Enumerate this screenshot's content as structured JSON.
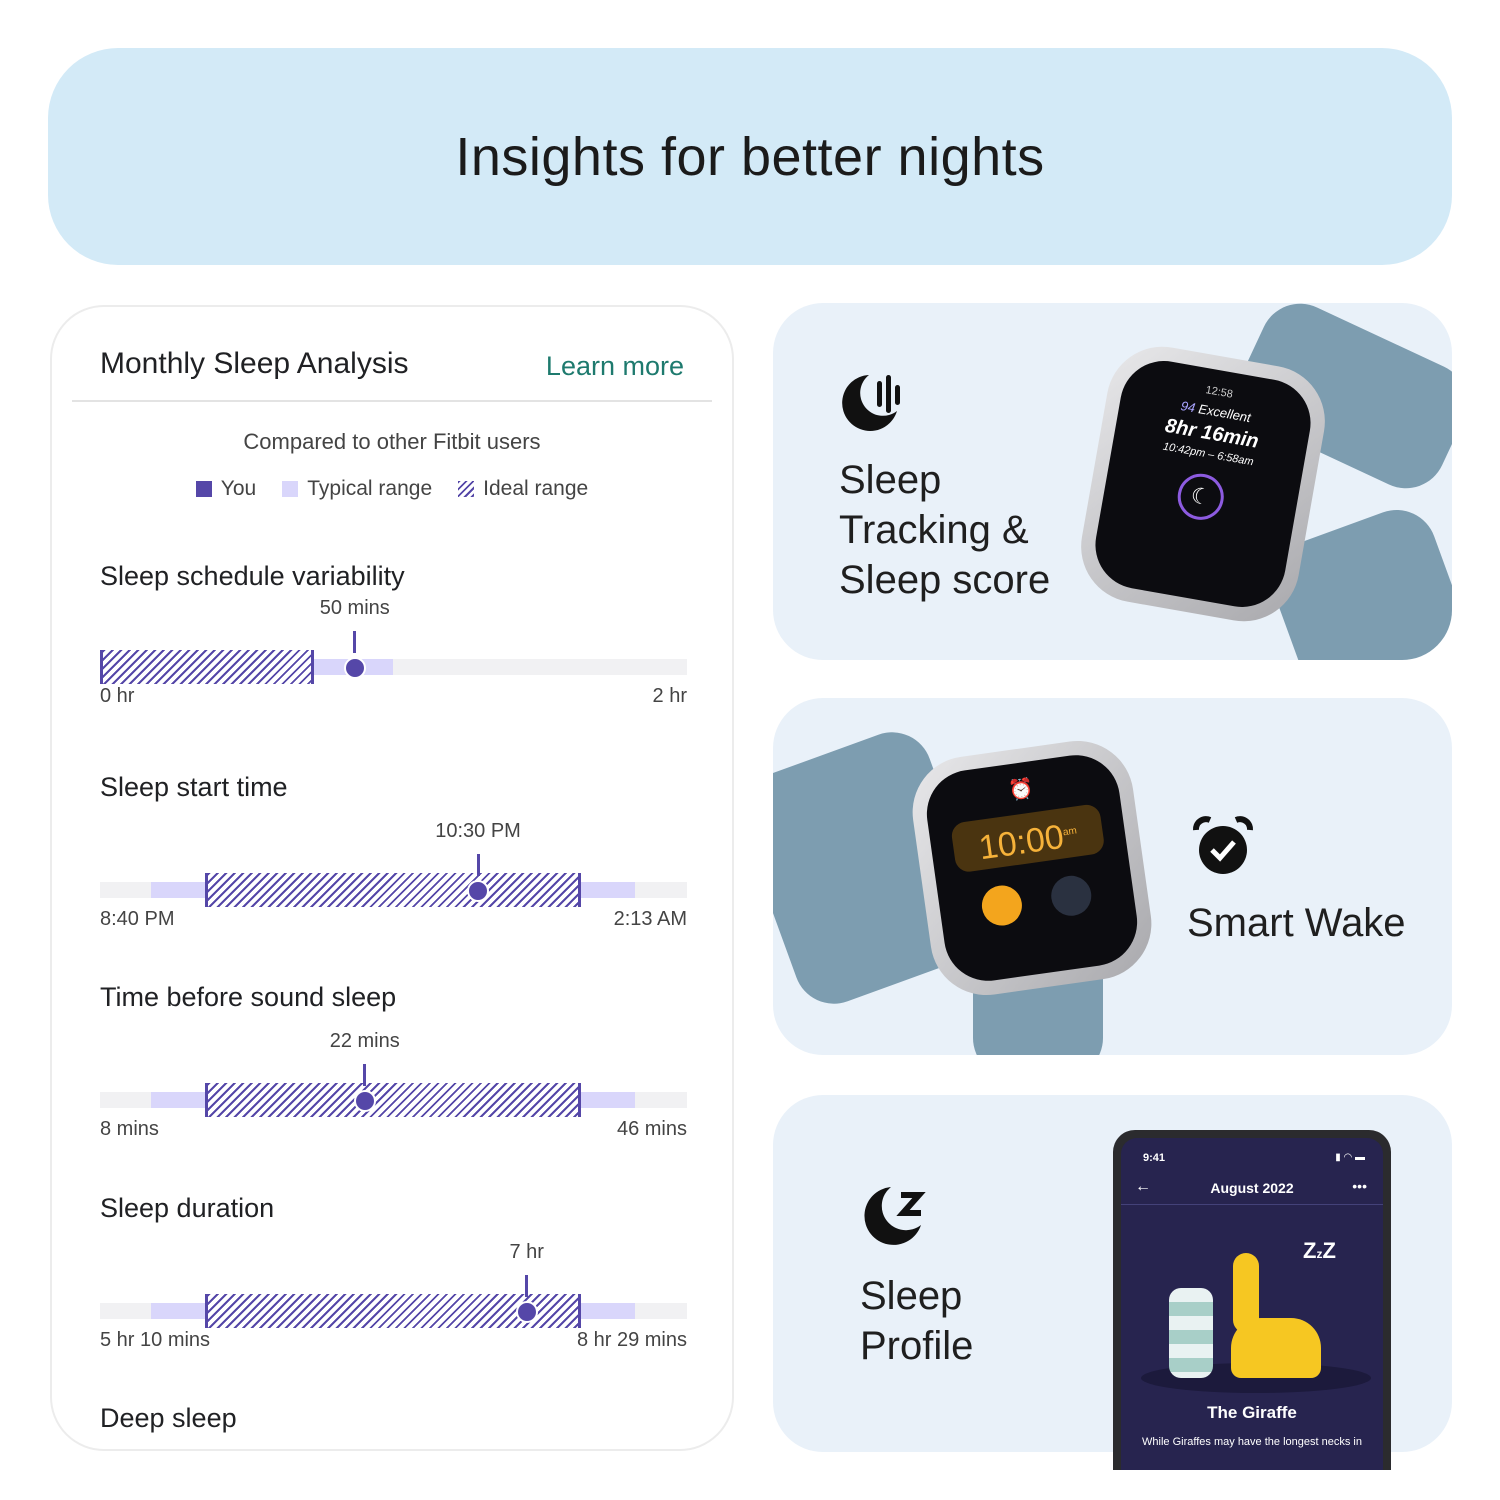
{
  "banner": {
    "title": "Insights for better nights"
  },
  "analysis": {
    "title": "Monthly Sleep Analysis",
    "learn_more": "Learn more",
    "subtitle": "Compared to other Fitbit users",
    "legend": [
      {
        "label": "You",
        "color": "#5547a8"
      },
      {
        "label": "Typical range",
        "color": "#d9d6fb"
      },
      {
        "label": "Ideal range",
        "pattern": "hatched"
      }
    ],
    "metrics": [
      {
        "title": "Sleep schedule variability",
        "value": "50 mins",
        "min": "0 hr",
        "max": "2 hr",
        "ideal": [
          0,
          0.365
        ],
        "typical": [
          0.365,
          0.5
        ],
        "you": 0.434
      },
      {
        "title": "Sleep start time",
        "value": "10:30 PM",
        "min": "8:40 PM",
        "max": "2:13 AM",
        "ideal": [
          0.179,
          0.819
        ],
        "typical": [
          0.087,
          0.911
        ],
        "you": 0.644
      },
      {
        "title": "Time before sound sleep",
        "value": "22 mins",
        "min": "8 mins",
        "max": "46 mins",
        "ideal": [
          0.179,
          0.819
        ],
        "typical": [
          0.087,
          0.911
        ],
        "you": 0.451
      },
      {
        "title": "Sleep duration",
        "value": "7 hr",
        "min": "5 hr 10 mins",
        "max": "8 hr 29 mins",
        "ideal": [
          0.179,
          0.819
        ],
        "typical": [
          0.087,
          0.911
        ],
        "you": 0.727
      },
      {
        "title": "Deep sleep"
      }
    ]
  },
  "features": [
    {
      "icon": "sleep-tracking-icon",
      "lines": [
        "Sleep",
        "Tracking &",
        "Sleep score"
      ],
      "watch": {
        "time": "12:58",
        "score": "94",
        "score_label": "Excellent",
        "duration": "8hr 16min",
        "range": "10:42pm – 6:58am"
      }
    },
    {
      "icon": "alarm-clock-icon",
      "lines": [
        "Smart Wake"
      ],
      "watch": {
        "time": "10:00",
        "ampm": "am"
      }
    },
    {
      "icon": "moon-z-icon",
      "lines": [
        "Sleep",
        "Profile"
      ],
      "phone": {
        "time": "9:41",
        "header": "August 2022",
        "animal": "The Giraffe",
        "desc": "While Giraffes may have the longest necks in"
      }
    }
  ]
}
